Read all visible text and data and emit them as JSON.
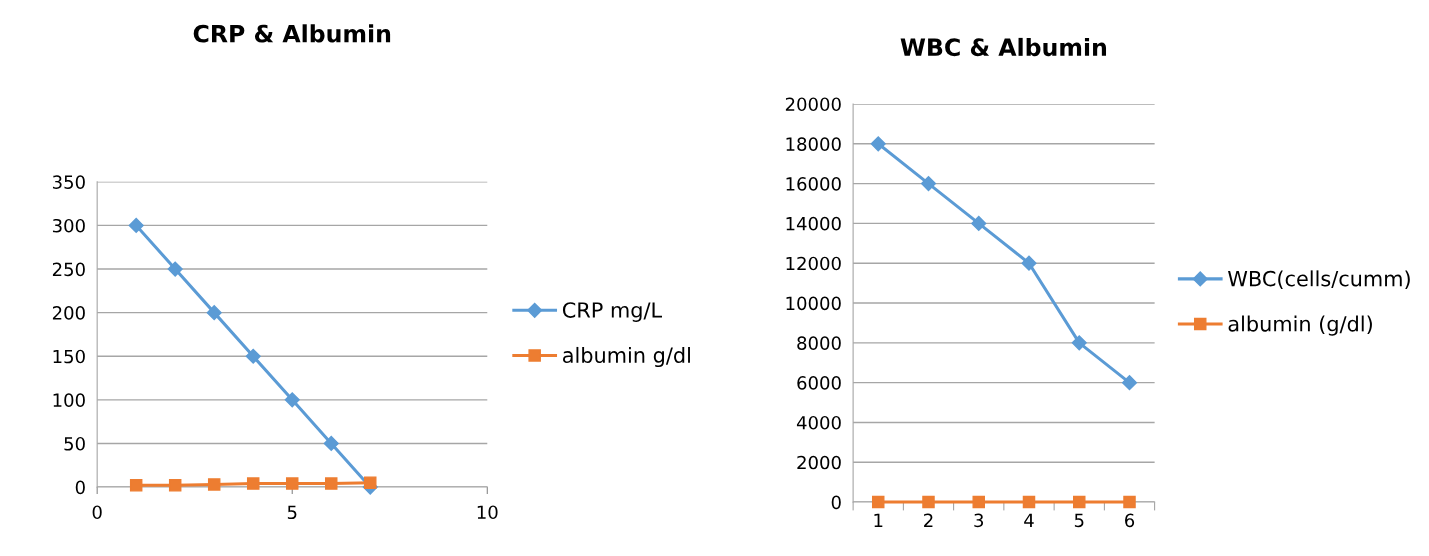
{
  "chart_data": [
    {
      "type": "line",
      "title": "CRP & Albumin",
      "x": [
        1,
        2,
        3,
        4,
        5,
        6,
        7
      ],
      "xlim": [
        0,
        10
      ],
      "xticks": [
        0,
        5,
        10
      ],
      "ylim": [
        0,
        350
      ],
      "yticks": [
        0,
        50,
        100,
        150,
        200,
        250,
        300,
        350
      ],
      "grid": "y",
      "legend": "right",
      "series": [
        {
          "name": "CRP mg/L",
          "color": "#5b9bd5",
          "marker": "diamond",
          "values": [
            300,
            250,
            200,
            150,
            100,
            50,
            0
          ]
        },
        {
          "name": "albumin g/dl",
          "color": "#ed7d31",
          "marker": "square",
          "values": [
            2,
            2,
            3,
            4,
            4,
            4,
            5
          ]
        }
      ]
    },
    {
      "type": "line",
      "title": "WBC & Albumin",
      "categories": [
        "1",
        "2",
        "3",
        "4",
        "5",
        "6"
      ],
      "ylim": [
        0,
        20000
      ],
      "yticks": [
        0,
        2000,
        4000,
        6000,
        8000,
        10000,
        12000,
        14000,
        16000,
        18000,
        20000
      ],
      "grid": "y",
      "legend": "right",
      "series": [
        {
          "name": "WBC(cells/cumm)",
          "color": "#5b9bd5",
          "marker": "diamond",
          "values": [
            18000,
            16000,
            14000,
            12000,
            8000,
            6000
          ]
        },
        {
          "name": "albumin (g/dl)",
          "color": "#ed7d31",
          "marker": "square",
          "values": [
            0,
            0,
            0,
            0,
            0,
            0
          ]
        }
      ]
    }
  ]
}
